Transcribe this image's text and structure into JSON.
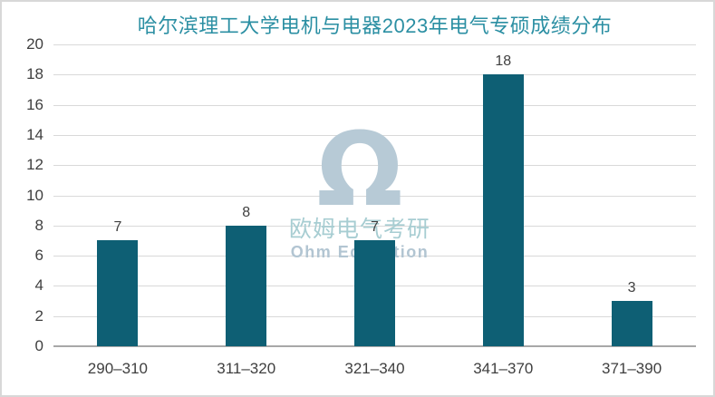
{
  "chart_data": {
    "type": "bar",
    "title": "哈尔滨理工大学电机与电器2023年电气专硕成绩分布",
    "categories": [
      "290–310",
      "311–320",
      "321–340",
      "341–370",
      "371–390"
    ],
    "values": [
      7,
      8,
      7,
      18,
      3
    ],
    "xlabel": "",
    "ylabel": "",
    "ylim": [
      0,
      20
    ],
    "yticks": [
      0,
      2,
      4,
      6,
      8,
      10,
      12,
      14,
      16,
      18,
      20
    ],
    "grid": "horizontal",
    "legend": "none",
    "bar_color": "#0E5F74"
  },
  "watermark": {
    "omega_symbol": "Ω",
    "line_cn": "欧姆电气考研",
    "line_en": "Ohm Education"
  },
  "colors": {
    "background": "#ffffff",
    "frame_border": "#d8d8d8",
    "title_text": "#2B8FA3",
    "bar_fill": "#0E5F74",
    "axis_text": "#3F3F3F",
    "gridline": "#D9D9D9",
    "baseline": "#A8A8A8",
    "watermark_omega": "#B7CAD6",
    "watermark_cn": "#A7CDD2",
    "watermark_en": "#B2C5D2"
  }
}
